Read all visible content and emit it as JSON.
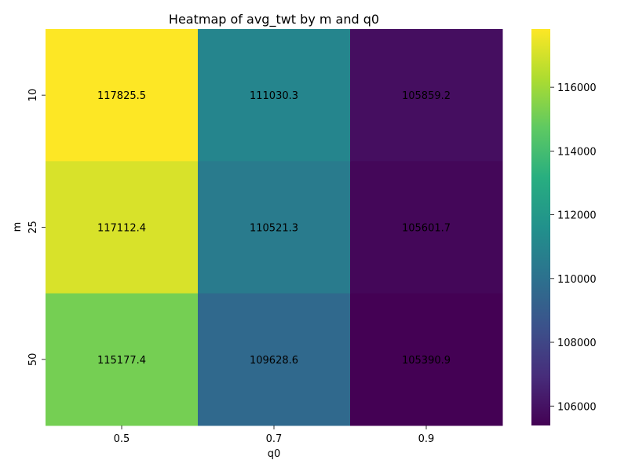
{
  "chart_data": {
    "type": "heatmap",
    "title": "Heatmap of avg_twt by m and q0",
    "xlabel": "q0",
    "ylabel": "m",
    "x_categories": [
      "0.5",
      "0.7",
      "0.9"
    ],
    "y_categories": [
      "10",
      "25",
      "50"
    ],
    "values": [
      [
        117825.5,
        111030.3,
        105859.2
      ],
      [
        117112.4,
        110521.3,
        105601.7
      ],
      [
        115177.4,
        109628.6,
        105390.9
      ]
    ],
    "value_labels": [
      [
        "117825.5",
        "111030.3",
        "105859.2"
      ],
      [
        "117112.4",
        "110521.3",
        "105601.7"
      ],
      [
        "115177.4",
        "109628.6",
        "105390.9"
      ]
    ],
    "colormap": "viridis",
    "colorbar": {
      "range": [
        105390.9,
        117825.5
      ],
      "ticks": [
        106000,
        108000,
        110000,
        112000,
        114000,
        116000
      ],
      "tick_labels": [
        "106000",
        "108000",
        "110000",
        "112000",
        "114000",
        "116000"
      ]
    }
  }
}
